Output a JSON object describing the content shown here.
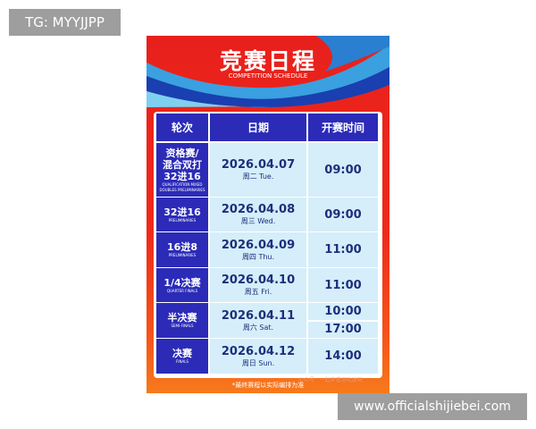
{
  "watermark_top": "TG: MYYJJPP",
  "watermark_bottom": "www.officialshijiebei.com",
  "poster": {
    "title": "竞赛日程",
    "subtitle": "COMPETITION SCHEDULE",
    "headers": [
      "轮次",
      "日期",
      "开赛时间"
    ],
    "rows": [
      {
        "round": "资格赛/\n混合双打\n32进16",
        "round_en": "QUALIFICATION MIXED DOUBLES PRELIMINARIES",
        "date": "2026.04.07",
        "weekday": "周二 Tue.",
        "times": [
          "09:00"
        ]
      },
      {
        "round": "32进16",
        "round_en": "PRELIMINARIES",
        "date": "2026.04.08",
        "weekday": "周三 Wed.",
        "times": [
          "09:00"
        ]
      },
      {
        "round": "16进8",
        "round_en": "PRELIMINARIES",
        "date": "2026.04.09",
        "weekday": "周四 Thu.",
        "times": [
          "11:00"
        ]
      },
      {
        "round": "1/4决赛",
        "round_en": "QUARTER FINALS",
        "date": "2026.04.10",
        "weekday": "周五 Fri.",
        "times": [
          "11:00"
        ]
      },
      {
        "round": "半决赛",
        "round_en": "SEMI-FINALS",
        "date": "2026.04.11",
        "weekday": "周六 Sat.",
        "times": [
          "10:00",
          "17:00"
        ]
      },
      {
        "round": "决赛",
        "round_en": "FINALS",
        "date": "2026.04.12",
        "weekday": "周日 Sun.",
        "times": [
          "14:00"
        ]
      }
    ],
    "footnote": "*最终赛程以实际编排为准",
    "account": "公众号 · 一起来看羽毛球呀"
  }
}
